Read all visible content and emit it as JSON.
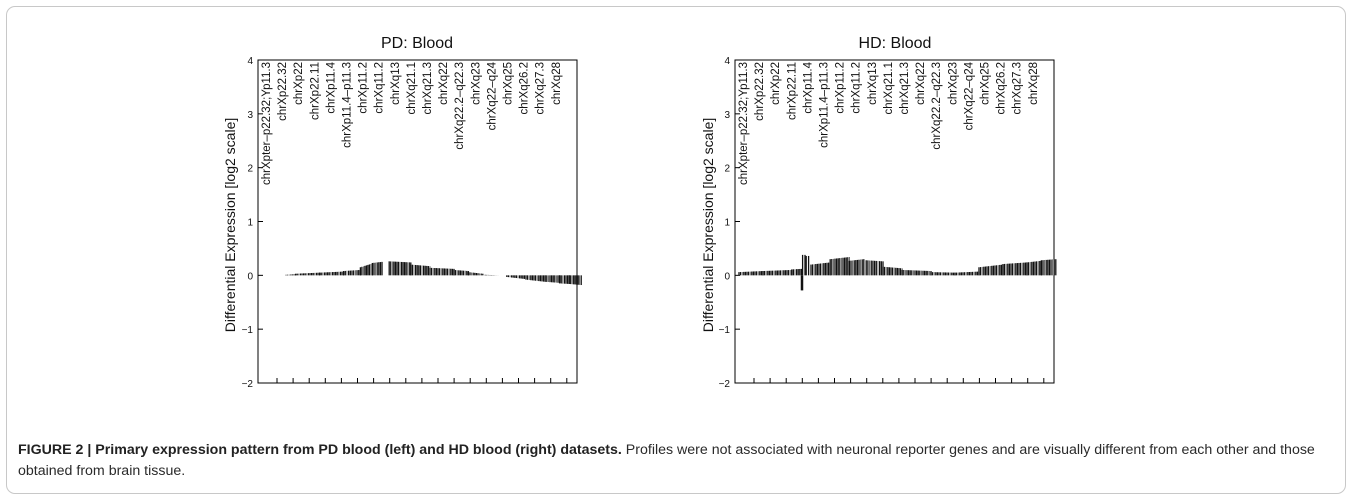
{
  "chart_data": [
    {
      "type": "bar",
      "title": "PD: Blood",
      "ylabel": "Differential Expression [log2 scale]",
      "ylim": [
        -2,
        4
      ],
      "yticks": [
        "4",
        "3",
        "2",
        "1",
        "0",
        "−1",
        "−2"
      ],
      "band_labels": [
        "chrXpter–p22.32;Yp11.3",
        "chrXp22.32",
        "chrXp22",
        "chrXp22.11",
        "chrXp11.4",
        "chrXp11.4–p11.3",
        "chrXp11.2",
        "chrXq11.2",
        "chrXq13",
        "chrXq21.1",
        "chrXq21.3",
        "chrXq22",
        "chrXq22.2–q22.3",
        "chrXq23",
        "chrXq22–q24",
        "chrXq25",
        "chrXq26.2",
        "chrXq27.3",
        "chrXq28"
      ],
      "series": [
        {
          "segments": [
            {
              "x0": 0.1,
              "x1": 0.14,
              "y0": 0.01,
              "y1": 0.02
            },
            {
              "x0": 0.14,
              "x1": 0.24,
              "y0": 0.03,
              "y1": 0.05
            },
            {
              "x0": 0.24,
              "x1": 0.34,
              "y0": 0.05,
              "y1": 0.07
            },
            {
              "x0": 0.34,
              "x1": 0.41,
              "y0": 0.08,
              "y1": 0.1
            },
            {
              "x0": 0.41,
              "x1": 0.46,
              "y0": 0.15,
              "y1": 0.22
            },
            {
              "x0": 0.46,
              "x1": 0.5,
              "y0": 0.23,
              "y1": 0.25
            },
            {
              "x0": 0.53,
              "x1": 0.62,
              "y0": 0.26,
              "y1": 0.24
            },
            {
              "x0": 0.62,
              "x1": 0.7,
              "y0": 0.2,
              "y1": 0.17
            },
            {
              "x0": 0.7,
              "x1": 0.8,
              "y0": 0.14,
              "y1": 0.12
            },
            {
              "x0": 0.8,
              "x1": 0.86,
              "y0": 0.1,
              "y1": 0.08
            },
            {
              "x0": 0.86,
              "x1": 0.92,
              "y0": 0.06,
              "y1": 0.03
            },
            {
              "x0": 0.93,
              "x1": 0.99,
              "y0": 0.01,
              "y1": 0.0
            },
            {
              "x0": 1.02,
              "x1": 1.1,
              "y0": -0.03,
              "y1": -0.07
            },
            {
              "x0": 1.1,
              "x1": 1.18,
              "y0": -0.08,
              "y1": -0.12
            },
            {
              "x0": 1.18,
              "x1": 1.24,
              "y0": -0.12,
              "y1": -0.14
            },
            {
              "x0": 1.24,
              "x1": 1.28,
              "y0": -0.15,
              "y1": -0.16
            },
            {
              "x0": 1.28,
              "x1": 1.33,
              "y0": -0.16,
              "y1": -0.18
            }
          ]
        }
      ]
    },
    {
      "type": "bar",
      "title": "HD: Blood",
      "ylabel": "Differential Expression [log2 scale]",
      "ylim": [
        -2,
        4
      ],
      "yticks": [
        "4",
        "3",
        "2",
        "1",
        "0",
        "−1",
        "−2"
      ],
      "band_labels": [
        "chrXpter–p22.32;Yp11.3",
        "chrXp22.32",
        "chrXp22",
        "chrXp22.11",
        "chrXp11.4",
        "chrXp11.4–p11.3",
        "chrXp11.2",
        "chrXq11.2",
        "chrXq13",
        "chrXq21.1",
        "chrXq21.3",
        "chrXq22",
        "chrXq22.2–q22.3",
        "chrXq23",
        "chrXq22–q24",
        "chrXq25",
        "chrXq26.2",
        "chrXq27.3",
        "chrXq28"
      ],
      "series": [
        {
          "segments": [
            {
              "x0": 0.0,
              "x1": 0.1,
              "y0": 0.06,
              "y1": 0.08
            },
            {
              "x0": 0.1,
              "x1": 0.22,
              "y0": 0.08,
              "y1": 0.1
            },
            {
              "x0": 0.22,
              "x1": 0.26,
              "y0": 0.11,
              "y1": 0.12
            },
            {
              "x0": 0.26,
              "x1": 0.265,
              "y0": -0.28,
              "y1": -0.28
            },
            {
              "x0": 0.265,
              "x1": 0.275,
              "y0": 0.38,
              "y1": 0.38
            },
            {
              "x0": 0.28,
              "x1": 0.29,
              "y0": 0.36,
              "y1": 0.36
            },
            {
              "x0": 0.3,
              "x1": 0.38,
              "y0": 0.2,
              "y1": 0.24
            },
            {
              "x0": 0.38,
              "x1": 0.46,
              "y0": 0.3,
              "y1": 0.34
            },
            {
              "x0": 0.46,
              "x1": 0.52,
              "y0": 0.27,
              "y1": 0.3
            },
            {
              "x0": 0.53,
              "x1": 0.6,
              "y0": 0.28,
              "y1": 0.26
            },
            {
              "x0": 0.6,
              "x1": 0.68,
              "y0": 0.16,
              "y1": 0.13
            },
            {
              "x0": 0.68,
              "x1": 0.8,
              "y0": 0.1,
              "y1": 0.08
            },
            {
              "x0": 0.8,
              "x1": 0.9,
              "y0": 0.06,
              "y1": 0.05
            },
            {
              "x0": 0.9,
              "x1": 1.0,
              "y0": 0.05,
              "y1": 0.07
            },
            {
              "x0": 1.0,
              "x1": 1.1,
              "y0": 0.15,
              "y1": 0.2
            },
            {
              "x0": 1.1,
              "x1": 1.2,
              "y0": 0.21,
              "y1": 0.24
            },
            {
              "x0": 1.2,
              "x1": 1.26,
              "y0": 0.24,
              "y1": 0.27
            },
            {
              "x0": 1.26,
              "x1": 1.32,
              "y0": 0.28,
              "y1": 0.3
            }
          ]
        }
      ]
    }
  ],
  "caption": {
    "label": "FIGURE 2 | Primary expression pattern from PD blood (left) and HD blood (right) datasets.",
    "text": " Profiles were not associated with neuronal reporter genes and are visually different from each other and those obtained from brain tissue."
  }
}
